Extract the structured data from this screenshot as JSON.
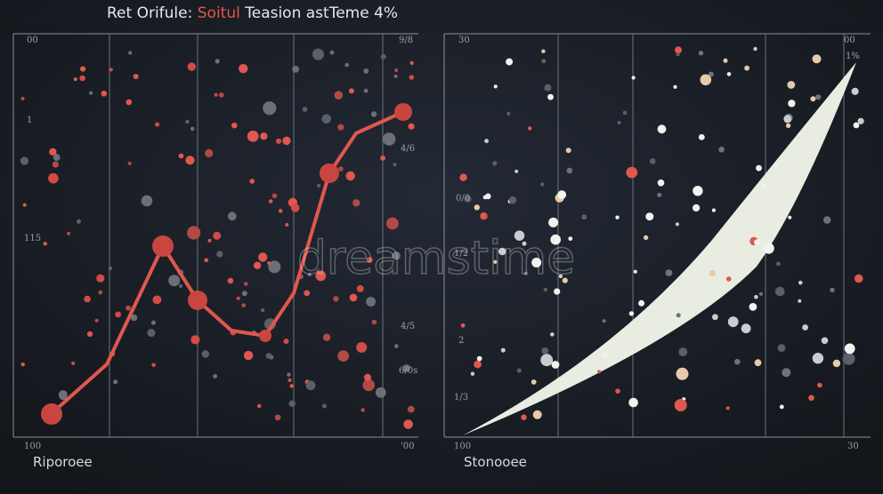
{
  "title": {
    "lead": "Ret Orifule:",
    "accent": "Soitul",
    "tail": "Teasion astTeme 4%"
  },
  "watermark": "dreamstime",
  "panels": [
    {
      "caption": "Riporoee",
      "labels": [
        "00",
        "1",
        "115",
        "100",
        "9/8",
        "4/6",
        "4/5",
        "6/0s",
        "'00"
      ]
    },
    {
      "caption": "Stonooee",
      "labels": [
        "30",
        "0/0",
        "1/2",
        "2",
        "1/3",
        "100",
        "00",
        "1%",
        "30"
      ]
    }
  ]
}
